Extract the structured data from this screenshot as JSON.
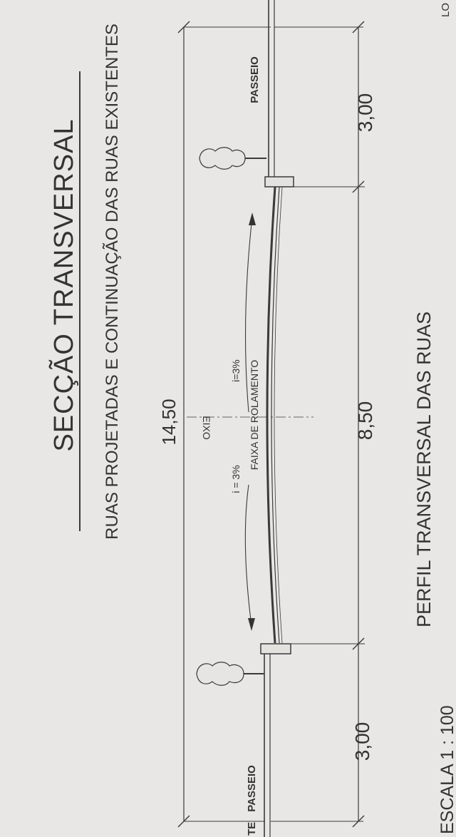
{
  "title": "SECÇÃO TRANSVERSAL",
  "subtitle": "RUAS PROJETADAS E CONTINUAÇÃO DAS RUAS EXISTENTES",
  "caption": "PERFIL TRANSVERSAL DAS RUAS",
  "scale": "ESCALA 1 : 100",
  "dims": {
    "total": "14,50",
    "sidewalk_top": "3,00",
    "roadway": "8,50",
    "sidewalk_bottom": "3,00"
  },
  "labels": {
    "passeio_top": "PASSEIO",
    "passeio_bottom": "PASSEIO",
    "eixo": "EIXO",
    "faixa": "FAIXA DE ROLAMENTO",
    "slope_top": "i=3%",
    "slope_bottom": "i = 3%",
    "edge_top": "LO",
    "edge_bottom": "TE"
  }
}
